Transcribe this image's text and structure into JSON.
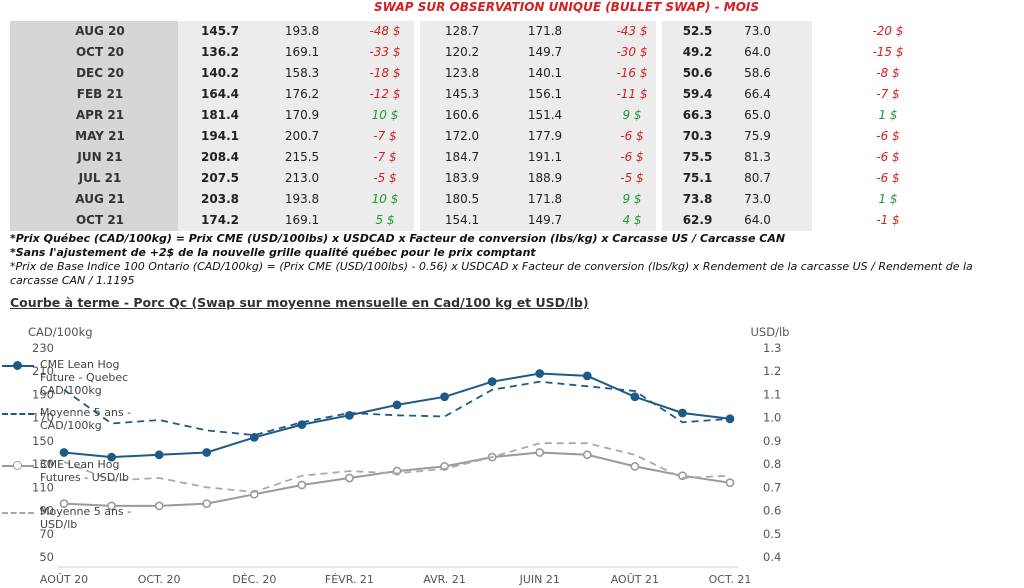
{
  "title": "SWAP SUR OBSERVATION UNIQUE (BULLET SWAP) - MOIS",
  "rows": [
    {
      "month": "AUG 20",
      "a": "145.7",
      "b": "193.8",
      "c": "-48 $",
      "c_sign": "neg",
      "d": "128.7",
      "e": "171.8",
      "f": "-43 $",
      "f_sign": "neg",
      "g": "52.5",
      "h": "73.0",
      "i": "-20 $",
      "i_sign": "neg"
    },
    {
      "month": "OCT 20",
      "a": "136.2",
      "b": "169.1",
      "c": "-33 $",
      "c_sign": "neg",
      "d": "120.2",
      "e": "149.7",
      "f": "-30 $",
      "f_sign": "neg",
      "g": "49.2",
      "h": "64.0",
      "i": "-15 $",
      "i_sign": "neg"
    },
    {
      "month": "DEC 20",
      "a": "140.2",
      "b": "158.3",
      "c": "-18 $",
      "c_sign": "neg",
      "d": "123.8",
      "e": "140.1",
      "f": "-16 $",
      "f_sign": "neg",
      "g": "50.6",
      "h": "58.6",
      "i": "-8 $",
      "i_sign": "neg"
    },
    {
      "month": "FEB 21",
      "a": "164.4",
      "b": "176.2",
      "c": "-12 $",
      "c_sign": "neg",
      "d": "145.3",
      "e": "156.1",
      "f": "-11 $",
      "f_sign": "neg",
      "g": "59.4",
      "h": "66.4",
      "i": "-7 $",
      "i_sign": "neg"
    },
    {
      "month": "APR 21",
      "a": "181.4",
      "b": "170.9",
      "c": "10 $",
      "c_sign": "pos",
      "d": "160.6",
      "e": "151.4",
      "f": "9 $",
      "f_sign": "pos",
      "g": "66.3",
      "h": "65.0",
      "i": "1 $",
      "i_sign": "pos"
    },
    {
      "month": "MAY 21",
      "a": "194.1",
      "b": "200.7",
      "c": "-7 $",
      "c_sign": "neg",
      "d": "172.0",
      "e": "177.9",
      "f": "-6 $",
      "f_sign": "neg",
      "g": "70.3",
      "h": "75.9",
      "i": "-6 $",
      "i_sign": "neg"
    },
    {
      "month": "JUN 21",
      "a": "208.4",
      "b": "215.5",
      "c": "-7 $",
      "c_sign": "neg",
      "d": "184.7",
      "e": "191.1",
      "f": "-6 $",
      "f_sign": "neg",
      "g": "75.5",
      "h": "81.3",
      "i": "-6 $",
      "i_sign": "neg"
    },
    {
      "month": "JUL 21",
      "a": "207.5",
      "b": "213.0",
      "c": "-5 $",
      "c_sign": "neg",
      "d": "183.9",
      "e": "188.9",
      "f": "-5 $",
      "f_sign": "neg",
      "g": "75.1",
      "h": "80.7",
      "i": "-6 $",
      "i_sign": "neg"
    },
    {
      "month": "AUG 21",
      "a": "203.8",
      "b": "193.8",
      "c": "10 $",
      "c_sign": "pos",
      "d": "180.5",
      "e": "171.8",
      "f": "9 $",
      "f_sign": "pos",
      "g": "73.8",
      "h": "73.0",
      "i": "1 $",
      "i_sign": "pos"
    },
    {
      "month": "OCT 21",
      "a": "174.2",
      "b": "169.1",
      "c": "5 $",
      "c_sign": "pos",
      "d": "154.1",
      "e": "149.7",
      "f": "4 $",
      "f_sign": "pos",
      "g": "62.9",
      "h": "64.0",
      "i": "-1 $",
      "i_sign": "neg"
    }
  ],
  "notes": {
    "note1": "*Prix Québec (CAD/100kg) = Prix CME (USD/100lbs) x USDCAD x Facteur de conversion (lbs/kg) x Carcasse US / Carcasse CAN",
    "note2": "*Sans l'ajustement de +2$ de la nouvelle grille qualité québec pour le prix comptant",
    "note3": "*Prix de Base Indice 100 Ontario (CAD/100kg) = (Prix CME (USD/100lbs) - 0.56) x USDCAD x Facteur de conversion (lbs/kg) x Rendement de la carcasse US / Rendement de la carcasse CAN / 1.1195"
  },
  "section_title": "Courbe à terme - Porc Qc (Swap sur moyenne mensuelle en Cad/100 kg et USD/lb)",
  "chart_data": {
    "type": "line",
    "ylabel": "CAD/100kg",
    "y2label": "USD/lb",
    "ylim": [
      50,
      230
    ],
    "y2lim": [
      0.4,
      1.3
    ],
    "yticks": [
      "230",
      "210",
      "190",
      "170",
      "150",
      "130",
      "110",
      "90",
      "70",
      "50"
    ],
    "y2ticks": [
      "1.3",
      "1.2",
      "1.1",
      "1.0",
      "0.9",
      "0.8",
      "0.7",
      "0.6",
      "0.5",
      "0.4"
    ],
    "xticks": [
      "AOÛT 20",
      "OCT. 20",
      "DÉC. 20",
      "FÉVR. 21",
      "AVR. 21",
      "JUIN 21",
      "AOÛT 21",
      "OCT. 21"
    ],
    "x": [
      "2020-08",
      "2020-09",
      "2020-10",
      "2020-11",
      "2020-12",
      "2021-01",
      "2021-02",
      "2021-03",
      "2021-04",
      "2021-05",
      "2021-06",
      "2021-07",
      "2021-08",
      "2021-09",
      "2021-10"
    ],
    "series": [
      {
        "name": "CME Lean Hog Future - Quebec CAD/100kg",
        "axis": "left",
        "style": "solid",
        "color": "#1f5a86",
        "markers": true,
        "values": [
          140,
          136,
          138,
          140,
          153,
          164,
          172,
          181,
          188,
          201,
          208,
          206,
          188,
          174,
          169
        ]
      },
      {
        "name": "Moyenne 5 ans - CAD/100kg",
        "axis": "left",
        "style": "dashed",
        "color": "#1f5a86",
        "markers": false,
        "values": [
          194,
          165,
          168,
          159,
          155,
          166,
          174,
          172,
          171,
          194,
          201,
          197,
          193,
          166,
          169
        ]
      },
      {
        "name": "CME Lean Hog Futures - USD/lb",
        "axis": "right",
        "style": "solid",
        "color": "#9a9a9a",
        "markers": true,
        "values": [
          0.63,
          0.62,
          0.62,
          0.63,
          0.67,
          0.71,
          0.74,
          0.77,
          0.79,
          0.83,
          0.85,
          0.84,
          0.79,
          0.75,
          0.72
        ]
      },
      {
        "name": "Moyenne 5 ans - USD/lb",
        "axis": "right",
        "style": "dashed",
        "color": "#a9a9a9",
        "markers": false,
        "values": [
          0.81,
          0.73,
          0.74,
          0.7,
          0.68,
          0.75,
          0.77,
          0.76,
          0.78,
          0.83,
          0.89,
          0.89,
          0.84,
          0.74,
          0.75
        ]
      }
    ],
    "legend": [
      {
        "label": "CME Lean Hog Future - Quebec CAD/100kg",
        "lines": [
          "CME Lean Hog",
          "Future - Quebec",
          "CAD/100kg"
        ],
        "color": "#1f5a86",
        "style": "solid",
        "marker": true
      },
      {
        "label": "Moyenne 5 ans - CAD/100kg",
        "lines": [
          "Moyenne 5 ans -",
          "CAD/100kg"
        ],
        "color": "#1f5a86",
        "style": "dashed",
        "marker": false
      },
      {
        "label": "CME Lean Hog Futures - USD/lb",
        "lines": [
          "CME Lean Hog",
          "Futures - USD/lb"
        ],
        "color": "#9a9a9a",
        "style": "solid",
        "marker": true
      },
      {
        "label": "Moyenne 5 ans - USD/lb",
        "lines": [
          "Moyenne 5 ans -",
          "USD/lb"
        ],
        "color": "#a9a9a9",
        "style": "dashed",
        "marker": false
      }
    ],
    "legend_position": "right",
    "grid": false
  }
}
